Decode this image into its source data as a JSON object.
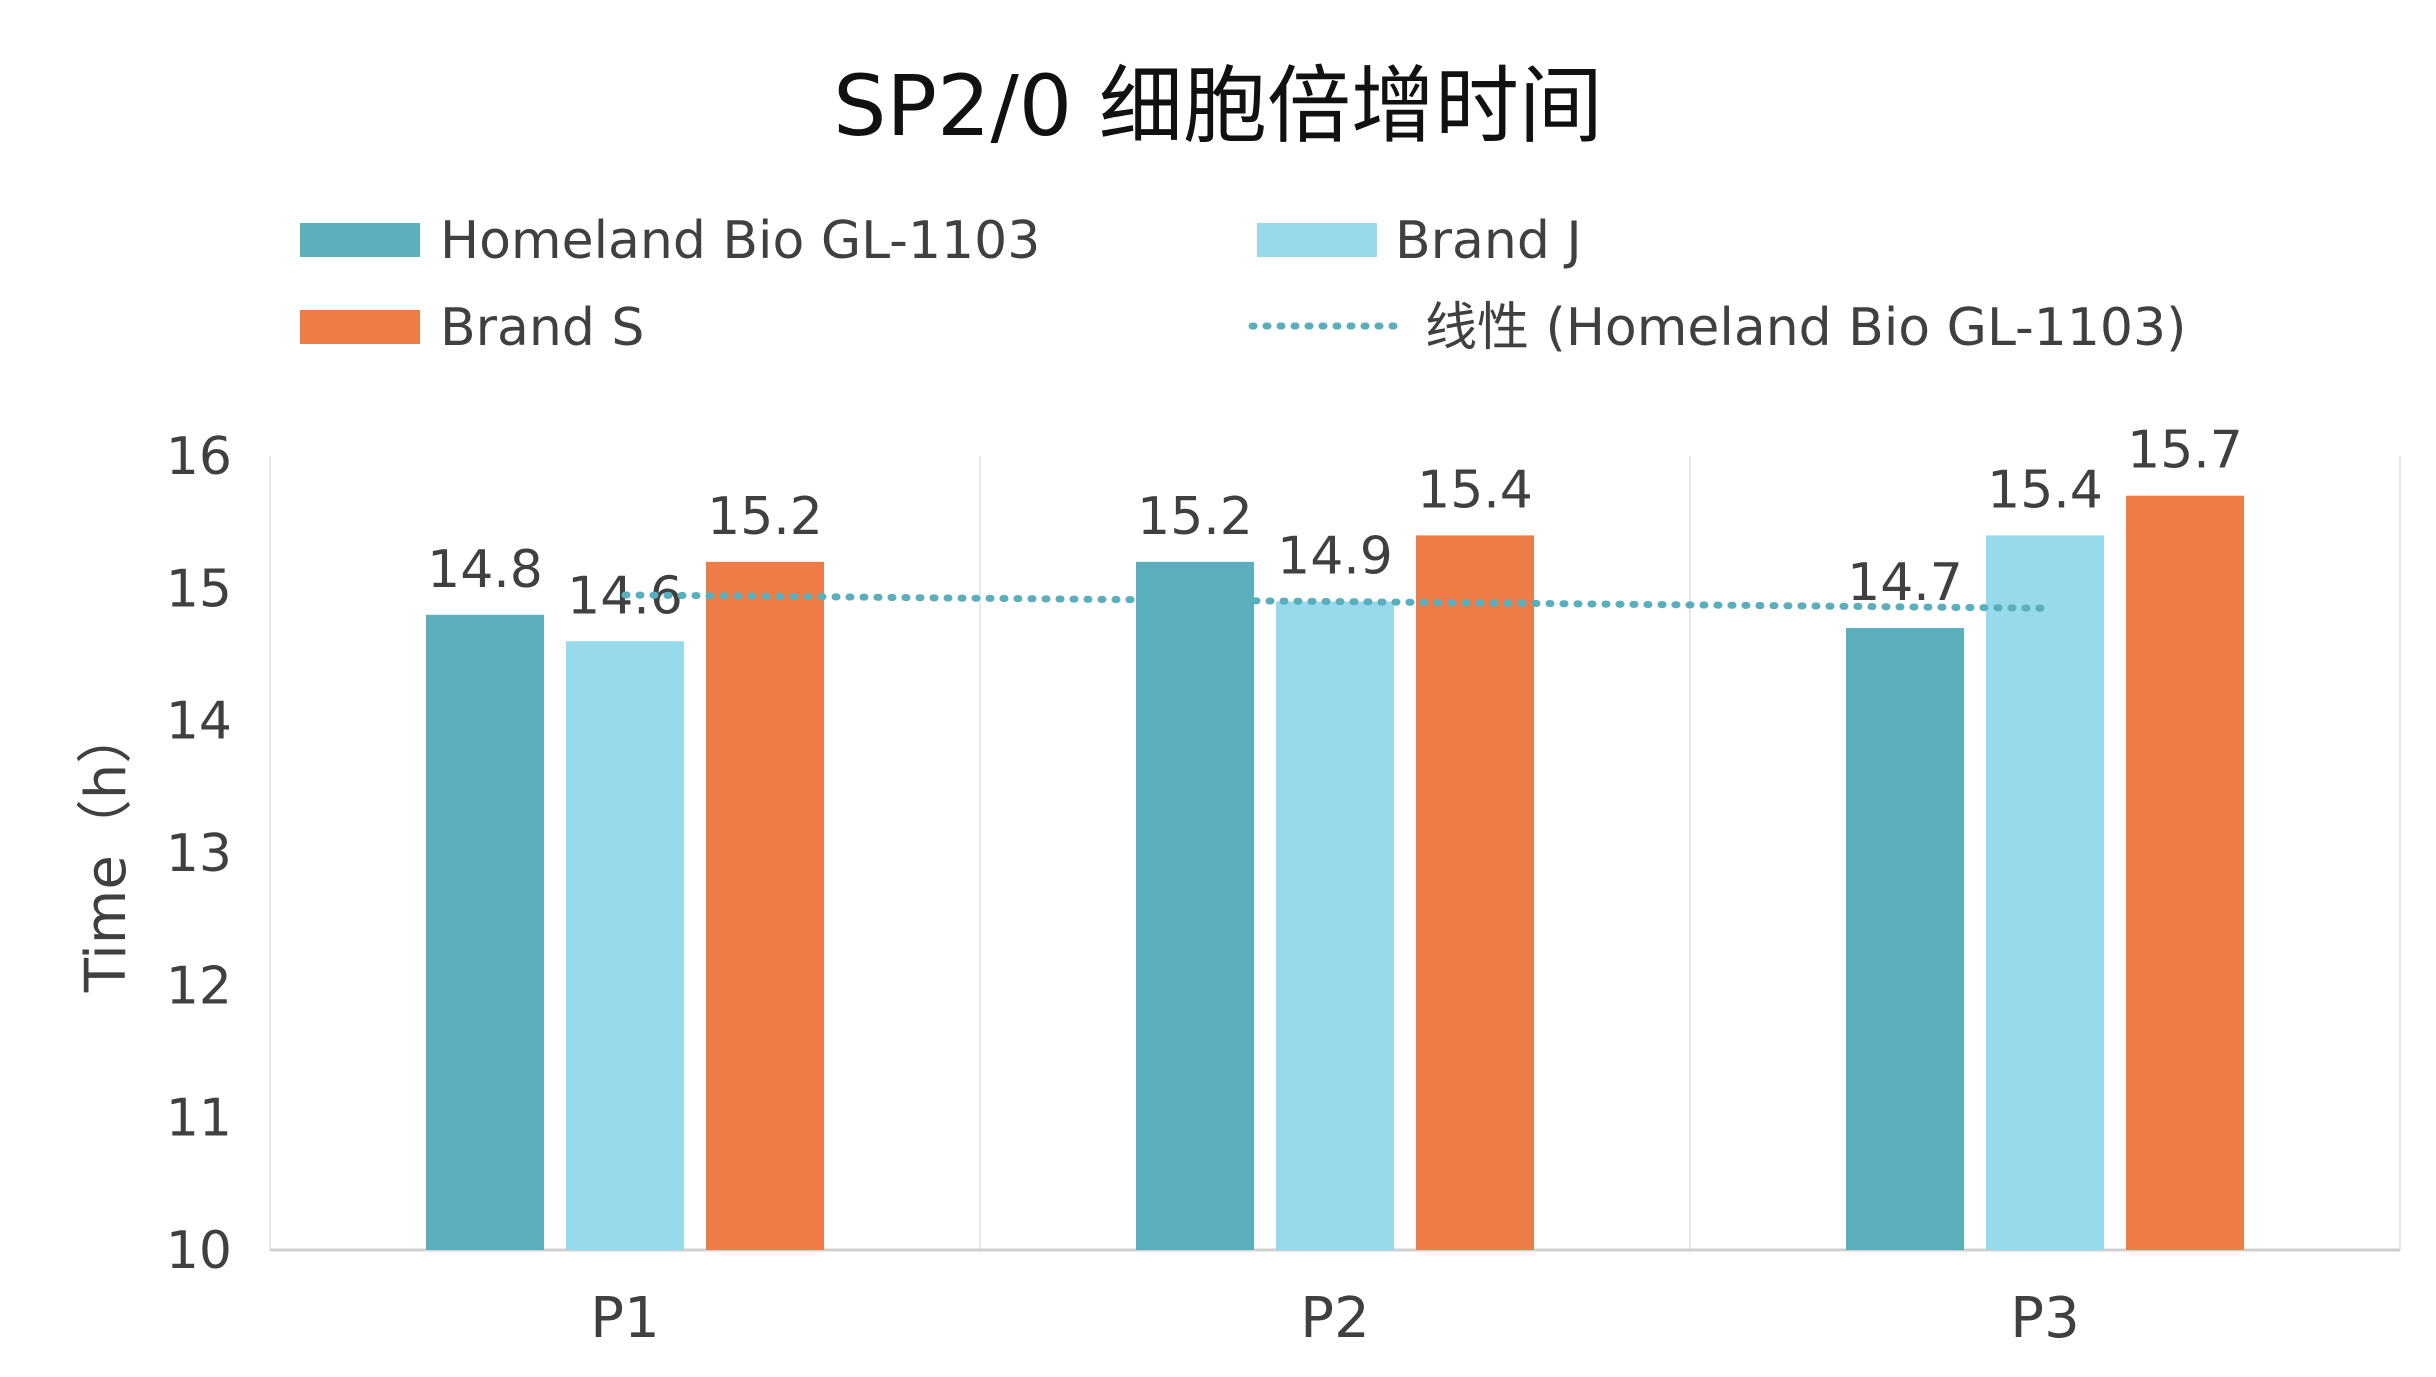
{
  "chart_data": {
    "type": "bar",
    "title": "SP2/0 细胞倍增时间",
    "ylabel": "Time（h）",
    "categories": [
      "P1",
      "P2",
      "P3"
    ],
    "ylim": [
      10,
      16
    ],
    "yticks": [
      "10",
      "11",
      "12",
      "13",
      "14",
      "15",
      "16"
    ],
    "grid": "vertical separators",
    "legend_position": "top",
    "series": [
      {
        "name": "Homeland Bio GL-1103",
        "color": "#5BAFBD",
        "values": [
          14.8,
          15.2,
          14.7
        ],
        "labels": [
          "14.8",
          "15.2",
          "14.7"
        ]
      },
      {
        "name": "Brand J",
        "color": "#96DAEB",
        "values": [
          14.6,
          14.9,
          15.4
        ],
        "labels": [
          "14.6",
          "14.9",
          "15.4"
        ]
      },
      {
        "name": "Brand S",
        "color": "#EE7C46",
        "values": [
          15.2,
          15.4,
          15.7
        ],
        "labels": [
          "15.2",
          "15.4",
          "15.7"
        ]
      }
    ],
    "trendline": {
      "name": "线性 (Homeland Bio GL-1103)",
      "color": "#5BAFBD",
      "style": "dotted",
      "of_series": "Homeland Bio GL-1103"
    }
  }
}
